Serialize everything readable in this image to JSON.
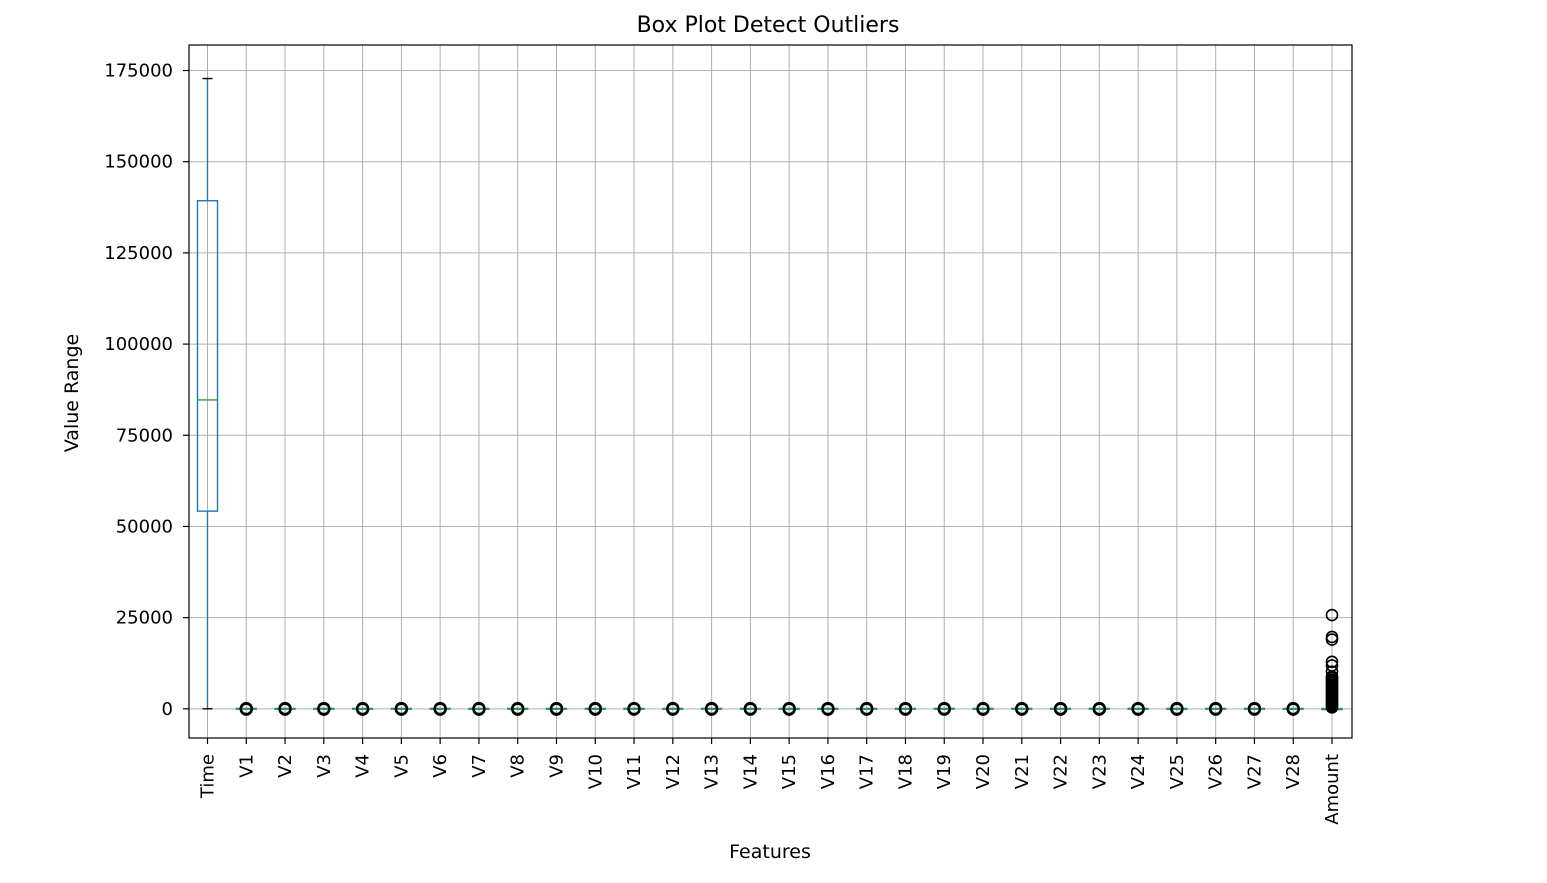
{
  "chart_data": {
    "type": "box",
    "title": "Box Plot Detect Outliers",
    "xlabel": "Features",
    "ylabel": "Value Range",
    "ylim": [
      -8000,
      182000
    ],
    "yticks": [
      0,
      25000,
      50000,
      75000,
      100000,
      125000,
      150000,
      175000
    ],
    "grid": true,
    "categories": [
      "Time",
      "V1",
      "V2",
      "V3",
      "V4",
      "V5",
      "V6",
      "V7",
      "V8",
      "V9",
      "V10",
      "V11",
      "V12",
      "V13",
      "V14",
      "V15",
      "V16",
      "V17",
      "V18",
      "V19",
      "V20",
      "V21",
      "V22",
      "V23",
      "V24",
      "V25",
      "V26",
      "V27",
      "V28",
      "Amount"
    ],
    "boxes": [
      {
        "name": "Time",
        "whisker_low": 0,
        "q1": 54200,
        "median": 84700,
        "q3": 139300,
        "whisker_high": 172800,
        "outliers": []
      },
      {
        "name": "Amount",
        "whisker_low": 0,
        "q1": 6,
        "median": 22,
        "q3": 77,
        "whisker_high": 185,
        "outliers": [
          25700,
          19700,
          19000,
          12900,
          11900,
          10200,
          8800,
          8400,
          7900,
          7500,
          7100,
          6700,
          6300,
          5900,
          5500,
          5100,
          4700,
          4300,
          3900,
          3500,
          3100,
          2700,
          2300,
          1900,
          1500,
          1100,
          700,
          400
        ]
      }
    ],
    "small_features_outlier_range": [
      -110,
      110
    ],
    "colors": {
      "box": "#1f77b4",
      "median": "#2ca02c",
      "whisker": "#1f77b4",
      "cap": "#000000",
      "outlier": "#000000"
    }
  }
}
